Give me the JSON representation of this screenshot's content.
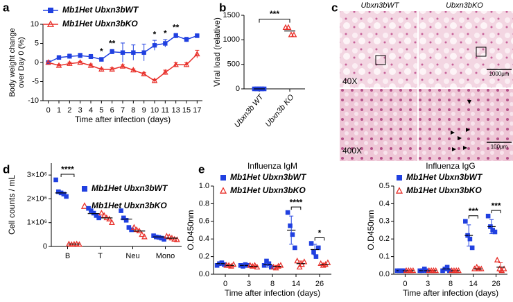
{
  "chart_data": [
    {
      "type": "line",
      "panel": "a",
      "xlabel": "Time after infection (days)",
      "ylabel": [
        "Body weight change",
        "over Day 0 (%)"
      ],
      "categories": [
        "0",
        "1",
        "2",
        "3",
        "4",
        "5",
        "6",
        "7",
        "8",
        "9",
        "10",
        "11",
        "13",
        "15",
        "17"
      ],
      "ylim": [
        -10,
        10
      ],
      "yticks": [
        -10,
        -5,
        0,
        5,
        10
      ],
      "series": [
        {
          "name": "Mb1Het Ubxn3bWT",
          "color": "#2040e0",
          "marker": "square",
          "values": [
            0,
            1.3,
            1.6,
            1.8,
            1.5,
            0.8,
            2.8,
            2.6,
            2.6,
            2.6,
            4.5,
            5.0,
            7.0,
            6.0,
            7.0
          ],
          "errors": [
            0,
            0.5,
            0.6,
            0.6,
            0.6,
            0.5,
            0.6,
            2.5,
            2.0,
            2.2,
            1.3,
            1.0,
            0.6,
            0.6,
            0.5
          ]
        },
        {
          "name": "Mb1Het Ubxn3bKO",
          "color": "#e8302a",
          "marker": "triangle",
          "values": [
            0,
            -0.8,
            -0.3,
            0,
            -0.8,
            -1.8,
            -1.8,
            -1.0,
            -2.0,
            -3.0,
            -4.8,
            -2.6,
            -0.6,
            -0.6,
            2.2
          ],
          "errors": [
            0,
            0.3,
            0.4,
            0.3,
            0.4,
            0.3,
            0.4,
            0.4,
            0.3,
            0.4,
            0.4,
            0.6,
            0.6,
            0.6,
            1.0
          ]
        }
      ],
      "annotations": [
        null,
        null,
        null,
        null,
        null,
        "*",
        "**",
        null,
        null,
        null,
        "*",
        "*",
        "**",
        null,
        null
      ]
    },
    {
      "type": "dot",
      "panel": "b",
      "ylabel": "Viral load (relative)",
      "categories": [
        "Ubxn3b WT",
        "Ubxn3b KO"
      ],
      "ylim": [
        0,
        1500
      ],
      "yticks": [
        0,
        500,
        1000,
        1500
      ],
      "series": [
        {
          "color": "#2040e0",
          "marker": "square",
          "values": [
            [
              0,
              0,
              0,
              0,
              0
            ],
            null
          ],
          "means": [
            0,
            null
          ]
        },
        {
          "color": "#e8302a",
          "marker": "triangle",
          "values": [
            null,
            [
              1250,
              1250,
              1100,
              1100
            ]
          ],
          "means": [
            null,
            1180
          ]
        }
      ],
      "annotation": "***"
    },
    {
      "type": "dot",
      "panel": "d",
      "ylabel": "Cell counts / mL",
      "categories": [
        "B",
        "T",
        "Neu",
        "Mono"
      ],
      "ylim": [
        0,
        3500000
      ],
      "yticks": [
        0,
        {
          "value": 1000000,
          "label": "1×10⁶"
        },
        {
          "value": 2000000,
          "label": "2×10⁶"
        },
        {
          "value": 3000000,
          "label": "3×10⁶"
        }
      ],
      "series": [
        {
          "name": "Mb1Het Ubxn3bWT",
          "color": "#2040e0",
          "marker": "square",
          "values": [
            [
              2800000,
              2300000,
              2250000,
              2200000,
              2100000
            ],
            [
              1600000,
              1500000,
              1400000,
              1300000,
              1200000
            ],
            [
              1500000,
              1200000,
              1100000,
              800000,
              700000
            ],
            [
              450000,
              400000,
              380000,
              350000,
              300000
            ]
          ],
          "means": [
            2250000,
            1380000,
            1150000,
            400000
          ]
        },
        {
          "name": "Mb1Het Ubxn3bKO",
          "color": "#e8302a",
          "marker": "triangle",
          "values": [
            [
              100000,
              80000,
              90000,
              100000,
              80000
            ],
            [
              1400000,
              1300000,
              1200000,
              1150000,
              1000000
            ],
            [
              800000,
              700000,
              650000,
              500000,
              400000
            ],
            [
              430000,
              400000,
              350000,
              300000,
              280000
            ]
          ],
          "means": [
            100000,
            1200000,
            650000,
            350000
          ]
        }
      ],
      "annotations": [
        "****",
        null,
        null,
        null
      ]
    },
    {
      "type": "dot",
      "panel": "e",
      "title": "Influenza IgM",
      "xlabel": "Time after infection (days)",
      "ylabel": "O.D450nm",
      "categories": [
        "0",
        "3",
        "8",
        "14",
        "26"
      ],
      "ylim": [
        0,
        1
      ],
      "yticks": [
        {
          "value": 0,
          "label": "0.0"
        },
        0.2,
        0.4,
        0.6,
        0.8,
        {
          "value": 1,
          "label": "1.0"
        }
      ],
      "series": [
        {
          "name": "Mb1Het Ubxn3bWT",
          "color": "#2040e0",
          "marker": "square",
          "values": [
            [
              0.1,
              0.12,
              0.13,
              0.11
            ],
            [
              0.1,
              0.09,
              0.11,
              0.1
            ],
            [
              0.1,
              0.15,
              0.12,
              0.08
            ],
            [
              0.7,
              0.55,
              0.45,
              0.3
            ],
            [
              0.35,
              0.25,
              0.2,
              0.3
            ]
          ],
          "means": [
            0.12,
            0.1,
            0.11,
            0.5,
            0.28
          ],
          "errors": [
            0.01,
            0.01,
            0.03,
            0.16,
            0.06
          ]
        },
        {
          "name": "Mb1Het Ubxn3bKO",
          "color": "#e8302a",
          "marker": "triangle",
          "values": [
            [
              0.1,
              0.1,
              0.09,
              0.11
            ],
            [
              0.1,
              0.09,
              0.1,
              0.08
            ],
            [
              0.08,
              0.07,
              0.09,
              0.1
            ],
            [
              0.15,
              0.08,
              0.11,
              0.14
            ],
            [
              0.12,
              0.1,
              0.11,
              0.13
            ]
          ],
          "means": [
            0.1,
            0.09,
            0.09,
            0.12,
            0.11
          ],
          "errors": [
            0.01,
            0.01,
            0.01,
            0.03,
            0.01
          ]
        }
      ],
      "annotations": [
        null,
        null,
        null,
        "****",
        "*"
      ]
    },
    {
      "type": "dot",
      "title": "Influenza IgG",
      "xlabel": "Time after infection (days)",
      "ylabel": "O.D450nm",
      "categories": [
        "0",
        "3",
        "8",
        "14",
        "26"
      ],
      "ylim": [
        0,
        0.5
      ],
      "yticks": [
        {
          "value": 0,
          "label": "0.0"
        },
        0.1,
        0.2,
        0.3,
        0.4,
        0.5
      ],
      "series": [
        {
          "name": "Mb1Het Ubxn3bWT",
          "color": "#2040e0",
          "marker": "square",
          "values": [
            [
              0.02,
              0.02,
              0.02,
              0.02
            ],
            [
              0.02,
              0.02,
              0.03,
              0.02
            ],
            [
              0.02,
              0.03,
              0.04,
              0.02
            ],
            [
              0.3,
              0.22,
              0.2,
              0.15
            ],
            [
              0.33,
              0.27,
              0.25,
              0.24
            ]
          ],
          "means": [
            0.02,
            0.02,
            0.03,
            0.22,
            0.27
          ],
          "errors": [
            0.002,
            0.004,
            0.01,
            0.06,
            0.04
          ]
        },
        {
          "name": "Mb1Het Ubxn3bKO",
          "color": "#e8302a",
          "marker": "triangle",
          "values": [
            [
              0.02,
              0.02,
              0.02,
              0.02
            ],
            [
              0.02,
              0.02,
              0.02,
              0.02
            ],
            [
              0.02,
              0.02,
              0.02,
              0.02
            ],
            [
              0.03,
              0.04,
              0.03,
              0.03
            ],
            [
              0.08,
              0.03,
              0.02,
              0.03
            ]
          ],
          "means": [
            0.02,
            0.02,
            0.02,
            0.03,
            0.04
          ],
          "errors": [
            0.002,
            0.002,
            0.002,
            0.005,
            0.025
          ]
        }
      ],
      "annotations": [
        null,
        null,
        null,
        "***",
        "***"
      ]
    }
  ],
  "histology": {
    "panel": "c",
    "columns": [
      "Ubxn3bWT",
      "Ubxn3bKO"
    ],
    "magnifications": [
      "40X",
      "400X"
    ],
    "scale_bars": [
      "1000μm",
      "100μm"
    ]
  }
}
